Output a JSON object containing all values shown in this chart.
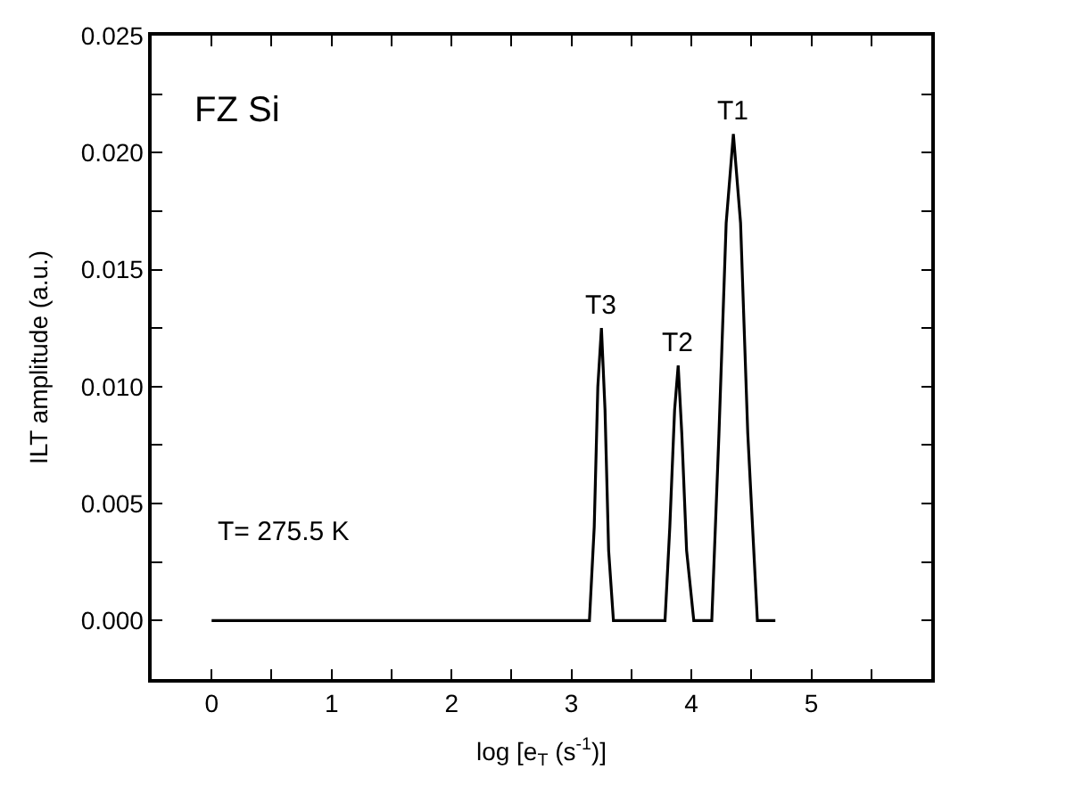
{
  "chart_data": {
    "type": "line",
    "xlabel": "log [e$_{T}$ (s$^{-1}$)]",
    "ylabel": "ILT amplitude (a.u.)",
    "x": [
      0,
      3.15,
      3.19,
      3.22,
      3.25,
      3.28,
      3.31,
      3.35,
      3.78,
      3.82,
      3.86,
      3.89,
      3.92,
      3.96,
      4.02,
      4.17,
      4.23,
      4.29,
      4.35,
      4.41,
      4.47,
      4.55,
      4.7
    ],
    "series": [
      {
        "color": "#000000",
        "values": [
          0,
          0,
          0.004,
          0.01,
          0.0125,
          0.009,
          0.003,
          0,
          0,
          0.004,
          0.009,
          0.0109,
          0.008,
          0.003,
          0,
          0,
          0.008,
          0.017,
          0.0208,
          0.017,
          0.008,
          0,
          0
        ]
      }
    ],
    "xlim": [
      -0.5,
      6
    ],
    "ylim": [
      -0.0025,
      0.025
    ],
    "xticks": [
      0,
      {
        "value": 0.5,
        "label": null
      },
      1,
      {
        "value": 1.5,
        "label": null
      },
      2,
      {
        "value": 2.5,
        "label": null
      },
      3,
      {
        "value": 3.5,
        "label": null
      },
      4,
      {
        "value": 4.5,
        "label": null
      },
      5,
      {
        "value": 5.5,
        "label": null
      }
    ],
    "yticks": [
      {
        "value": 0,
        "label": "0.000"
      },
      {
        "value": 0.0025,
        "label": null
      },
      {
        "value": 0.005,
        "label": "0.005"
      },
      {
        "value": 0.0075,
        "label": null
      },
      {
        "value": 0.01,
        "label": "0.010"
      },
      {
        "value": 0.0125,
        "label": null
      },
      {
        "value": 0.015,
        "label": "0.015"
      },
      {
        "value": 0.0175,
        "label": null
      },
      {
        "value": 0.02,
        "label": "0.020"
      },
      {
        "value": 0.0225,
        "label": null
      },
      {
        "value": 0.025,
        "label": "0.025"
      }
    ],
    "annotations": [
      "FZ Si",
      "T= 275.5 K",
      {
        "text": "T3",
        "x": 3.25,
        "y": 0.0125
      },
      {
        "text": "T2",
        "x": 3.89,
        "y": 0.0109
      },
      {
        "text": "T1",
        "x": 4.35,
        "y": 0.0208
      }
    ],
    "marker": "none",
    "line_style": "solid"
  }
}
